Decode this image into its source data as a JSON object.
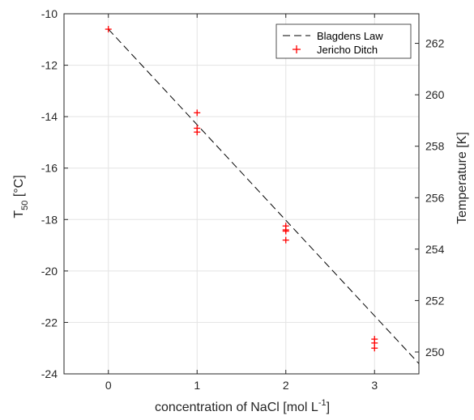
{
  "chart_data": {
    "type": "scatter",
    "xlabel": "concentration of NaCl [mol L",
    "xlabel_sup": "-1",
    "xlabel_tail": "]",
    "ylabel_main": "T",
    "ylabel_sub": "50",
    "ylabel_tail": " [°C]",
    "y2label": "Temperature [K]",
    "xlim": [
      -0.5,
      3.5
    ],
    "ylim": [
      -24,
      -10
    ],
    "y2lim": [
      249.15,
      263.15
    ],
    "x_ticks": [
      0,
      1,
      2,
      3
    ],
    "x_tick_labels": [
      "0",
      "1",
      "2",
      "3"
    ],
    "y_ticks": [
      -24,
      -22,
      -20,
      -18,
      -16,
      -14,
      -12,
      -10
    ],
    "y_tick_labels": [
      "-24",
      "-22",
      "-20",
      "-18",
      "-16",
      "-14",
      "-12",
      "-10"
    ],
    "y2_ticks": [
      250,
      252,
      254,
      256,
      258,
      260,
      262
    ],
    "y2_tick_labels": [
      "250",
      "252",
      "254",
      "256",
      "258",
      "260",
      "262"
    ],
    "grid": true,
    "legend_position": "top-right",
    "series": [
      {
        "name": "Blagdens Law",
        "kind": "line",
        "style": "dashed",
        "color": "#000000",
        "x": [
          0,
          3.5
        ],
        "y": [
          -10.6,
          -23.6
        ]
      },
      {
        "name": "Jericho Ditch",
        "kind": "scatter",
        "marker": "+",
        "color": "#ff0000",
        "x": [
          0,
          1,
          1,
          1,
          2,
          2,
          2,
          2,
          3,
          3,
          3
        ],
        "y": [
          -10.6,
          -13.85,
          -14.45,
          -14.6,
          -18.25,
          -18.45,
          -18.8,
          -18.4,
          -22.65,
          -22.8,
          -23.0
        ]
      }
    ]
  }
}
